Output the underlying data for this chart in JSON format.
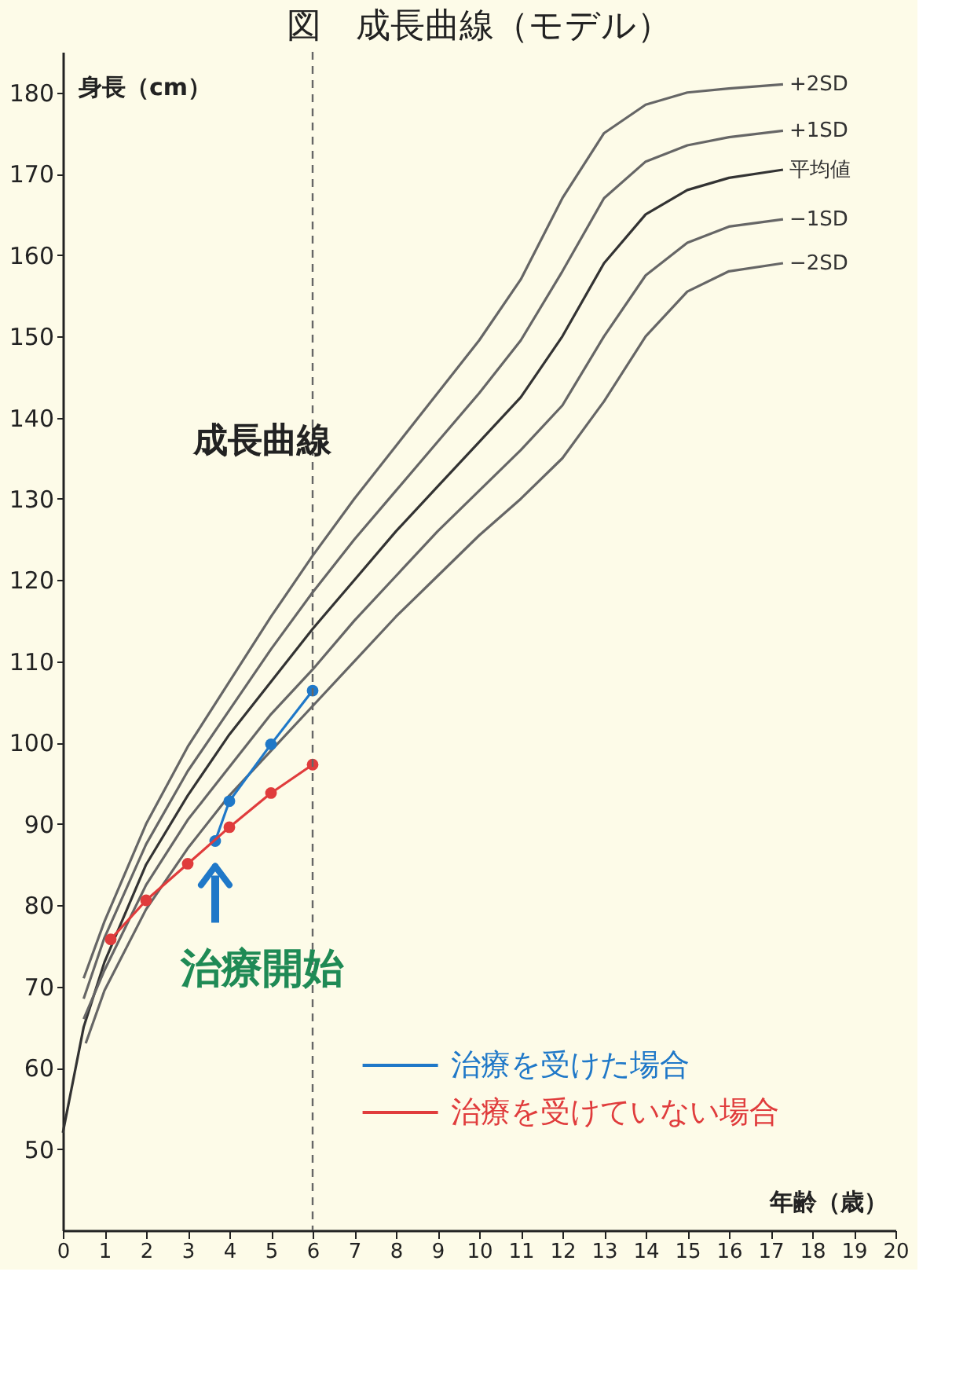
{
  "chart_data": {
    "type": "line",
    "title": "図　成長曲線（モデル）",
    "xlabel": "年齢（歳）",
    "ylabel": "身長（cm）",
    "xlim": [
      0,
      20
    ],
    "xticks": [
      0,
      1,
      2,
      3,
      4,
      5,
      6,
      7,
      8,
      9,
      10,
      11,
      12,
      13,
      14,
      15,
      16,
      17,
      18,
      19,
      20
    ],
    "ylim": [
      40,
      185
    ],
    "yticks": [
      50,
      60,
      70,
      80,
      90,
      100,
      110,
      120,
      130,
      140,
      150,
      160,
      170,
      180
    ],
    "grid": false,
    "legend": "bottom right",
    "series": [
      {
        "name": "+2SD",
        "type": "line",
        "color": "#666666",
        "marker": "none",
        "x": [
          0.5,
          1,
          2,
          3,
          4,
          5,
          6,
          7,
          8,
          9,
          10,
          11,
          12,
          13,
          14,
          15,
          16,
          17.3
        ],
        "values": [
          71,
          78,
          90,
          99.5,
          107.5,
          115.5,
          123,
          130,
          136.5,
          143,
          149.5,
          157,
          167,
          175,
          178.5,
          180,
          180.5,
          181
        ]
      },
      {
        "name": "+1SD",
        "type": "line",
        "color": "#666666",
        "marker": "none",
        "x": [
          0.5,
          1,
          2,
          3,
          4,
          5,
          6,
          7,
          8,
          9,
          10,
          11,
          12,
          13,
          14,
          15,
          16,
          17.3
        ],
        "values": [
          68.5,
          76,
          87.5,
          96.5,
          104,
          111.5,
          118.5,
          125,
          131,
          137,
          143,
          149.5,
          158,
          167,
          171.5,
          173.5,
          174.5,
          175.3
        ]
      },
      {
        "name": "平均値",
        "type": "line",
        "color": "#333333",
        "marker": "none",
        "x": [
          0,
          0.5,
          1,
          2,
          3,
          4,
          5,
          6,
          7,
          8,
          9,
          10,
          11,
          12,
          13,
          14,
          15,
          16,
          17.3
        ],
        "values": [
          52,
          65,
          73,
          85,
          93.5,
          101,
          107.5,
          114,
          120,
          126,
          131.5,
          137,
          142.5,
          150,
          159,
          165,
          168,
          169.5,
          170.5
        ]
      },
      {
        "name": "−1SD",
        "type": "line",
        "color": "#666666",
        "marker": "none",
        "x": [
          0.5,
          1,
          2,
          3,
          4,
          5,
          6,
          7,
          8,
          9,
          10,
          11,
          12,
          13,
          14,
          15,
          16,
          17.3
        ],
        "values": [
          66,
          72,
          82.5,
          90.5,
          97,
          103.5,
          109,
          115,
          120.5,
          126,
          131,
          136,
          141.5,
          150,
          157.5,
          161.5,
          163.5,
          164.4
        ]
      },
      {
        "name": "−2SD",
        "type": "line",
        "color": "#666666",
        "marker": "none",
        "x": [
          0.55,
          1,
          2,
          3,
          4,
          5,
          6,
          7,
          8,
          9,
          10,
          11,
          12,
          13,
          14,
          15,
          16,
          17.3
        ],
        "values": [
          63,
          69.5,
          79.5,
          87,
          93.5,
          99,
          104.5,
          110,
          115.5,
          120.5,
          125.5,
          130,
          135,
          142,
          150,
          155.5,
          158,
          159
        ]
      },
      {
        "name": "治療を受けた場合",
        "type": "line",
        "color": "#1f78c8",
        "marker": "circle",
        "x": [
          3.66,
          4,
          5,
          6
        ],
        "values": [
          87.9,
          92.8,
          99.8,
          106.4
        ]
      },
      {
        "name": "治療を受けていない場合",
        "type": "line",
        "color": "#e03c3c",
        "marker": "circle",
        "x": [
          1.15,
          2,
          3,
          4,
          5,
          6
        ],
        "values": [
          75.8,
          80.6,
          85.1,
          89.6,
          93.8,
          97.3
        ]
      }
    ],
    "ref_lines": [
      {
        "axis": "x",
        "value": 6,
        "color": "#666666",
        "line_style": "dashed"
      }
    ],
    "annotations": [
      "成長曲線",
      {
        "text": "治療開始",
        "x": 3.66,
        "y": 87.9
      }
    ]
  }
}
